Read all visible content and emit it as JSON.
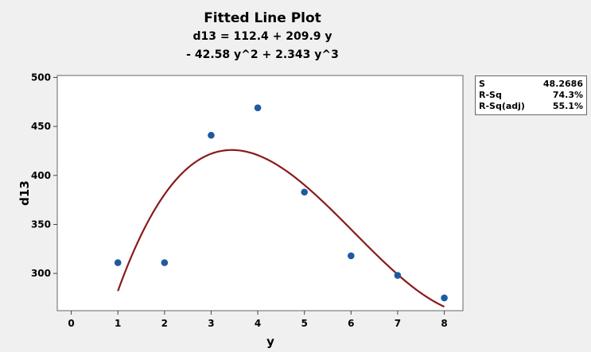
{
  "chart_data": {
    "type": "scatter",
    "title": "Fitted Line Plot",
    "subtitle_lines": [
      "d13 = 112.4 + 209.9 y",
      "- 42.58 y^2 + 2.343 y^3"
    ],
    "xlabel": "y",
    "ylabel": "d13",
    "xlim": [
      -0.3,
      8.4
    ],
    "ylim": [
      262,
      502
    ],
    "xticks": [
      0,
      1,
      2,
      3,
      4,
      5,
      6,
      7,
      8
    ],
    "yticks": [
      300,
      350,
      400,
      450,
      500
    ],
    "grid": false,
    "points": {
      "x": [
        1,
        2,
        3,
        4,
        5,
        6,
        7,
        8
      ],
      "y": [
        311,
        311,
        441,
        469,
        383,
        318,
        298,
        275
      ]
    },
    "fit": {
      "type": "cubic",
      "coefficients": [
        112.4,
        209.9,
        -42.58,
        2.343
      ],
      "x_range": [
        1,
        8
      ]
    },
    "colors": {
      "points": "#1f5aa0",
      "fit": "#8b1a1a"
    },
    "stats": [
      {
        "label": "S",
        "value": "48.2686"
      },
      {
        "label": "R-Sq",
        "value": "74.3%"
      },
      {
        "label": "R-Sq(adj)",
        "value": "55.1%"
      }
    ]
  }
}
